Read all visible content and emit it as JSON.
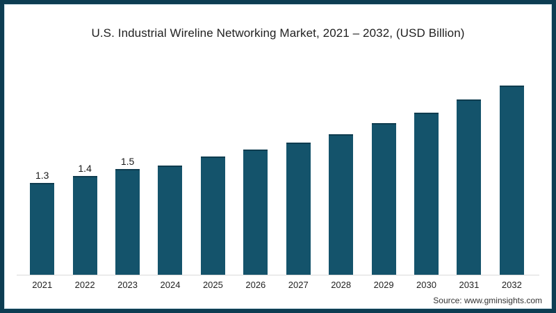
{
  "chart_data": {
    "type": "bar",
    "title": "U.S. Industrial Wireline Networking Market, 2021 – 2032, (USD Billion)",
    "categories": [
      "2021",
      "2022",
      "2023",
      "2024",
      "2025",
      "2026",
      "2027",
      "2028",
      "2029",
      "2030",
      "2031",
      "2032"
    ],
    "values": [
      1.3,
      1.4,
      1.5,
      1.55,
      1.67,
      1.77,
      1.87,
      1.99,
      2.15,
      2.3,
      2.48,
      2.68
    ],
    "data_labels": [
      "1.3",
      "1.4",
      "1.5",
      "",
      "",
      "",
      "",
      "",
      "",
      "",
      "",
      ""
    ],
    "xlabel": "",
    "ylabel": "",
    "ylim": [
      0,
      2.85
    ],
    "grid": false,
    "legend": false,
    "y_axis_shown": false,
    "bar_color": "#14536b",
    "bar_top_edge_color": "#0e3c4f",
    "axis_line_color": "#dadada"
  },
  "source_note": "Source: www.gminsights.com",
  "frame": {
    "border_color": "#0d3d52",
    "inner_highlight_color": "#cfe2ea"
  }
}
